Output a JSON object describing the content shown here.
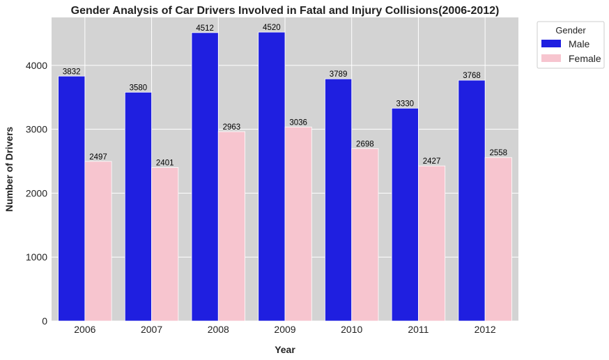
{
  "chart_data": {
    "type": "bar",
    "title": "Gender Analysis of Car Drivers Involved in Fatal and Injury Collisions(2006-2012)",
    "xlabel": "Year",
    "ylabel": "Number of Drivers",
    "categories": [
      "2006",
      "2007",
      "2008",
      "2009",
      "2010",
      "2011",
      "2012"
    ],
    "series": [
      {
        "name": "Male",
        "color": "#1f1fe0",
        "values": [
          3832,
          3580,
          4512,
          4520,
          3789,
          3330,
          3768
        ]
      },
      {
        "name": "Female",
        "color": "#f7c5cf",
        "values": [
          2497,
          2401,
          2963,
          3036,
          2698,
          2427,
          2558
        ]
      }
    ],
    "ylim": [
      0,
      4750
    ],
    "yticks": [
      0,
      1000,
      2000,
      3000,
      4000
    ],
    "grid": true,
    "background": "#d3d3d3",
    "legend": {
      "title": "Gender",
      "placement": "outside-top-right"
    }
  }
}
